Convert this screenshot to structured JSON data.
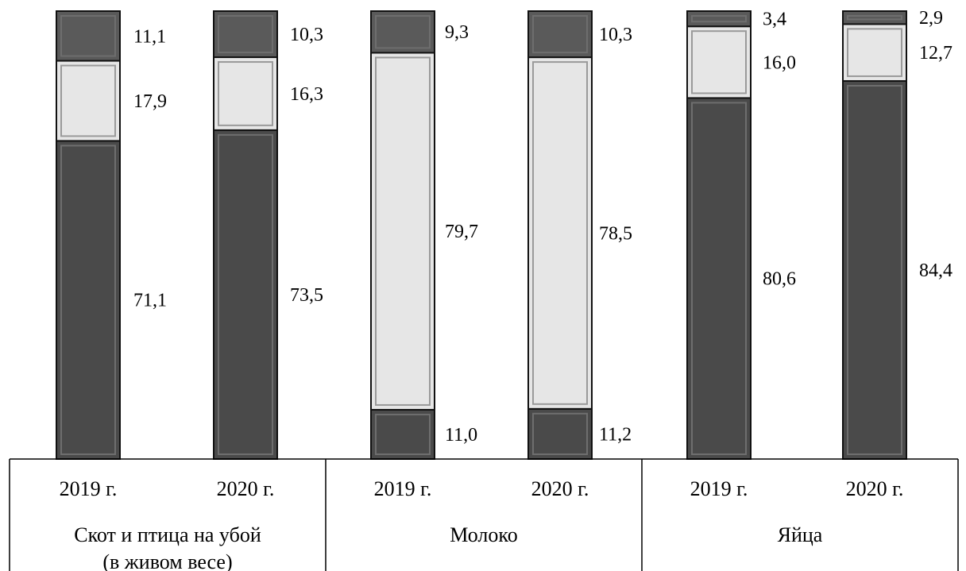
{
  "chart_data": {
    "type": "bar",
    "stacked": true,
    "percent_stacked": true,
    "groups": [
      {
        "name_lines": [
          "Скот и птица на убой",
          "(в живом весе)"
        ],
        "years": [
          "2019 г.",
          "2020 г."
        ],
        "bars": [
          {
            "values": [
              71.1,
              17.9,
              11.1
            ],
            "labels": [
              "71,1",
              "17,9",
              "11,1"
            ]
          },
          {
            "values": [
              73.5,
              16.3,
              10.3
            ],
            "labels": [
              "73,5",
              "16,3",
              "10,3"
            ]
          }
        ]
      },
      {
        "name_lines": [
          "Молоко"
        ],
        "years": [
          "2019 г.",
          "2020 г."
        ],
        "bars": [
          {
            "values": [
              11.0,
              79.7,
              9.3
            ],
            "labels": [
              "11,0",
              "79,7",
              "9,3"
            ]
          },
          {
            "values": [
              11.2,
              78.5,
              10.3
            ],
            "labels": [
              "11,2",
              "78,5",
              "10,3"
            ]
          }
        ]
      },
      {
        "name_lines": [
          "Яйца"
        ],
        "years": [
          "2019 г.",
          "2020 г."
        ],
        "bars": [
          {
            "values": [
              80.6,
              16.0,
              3.4
            ],
            "labels": [
              "80,6",
              "16,0",
              "3,4"
            ]
          },
          {
            "values": [
              84.4,
              12.7,
              2.9
            ],
            "labels": [
              "84,4",
              "12,7",
              "2,9"
            ]
          }
        ]
      }
    ],
    "segment_colors": [
      "#4a4a4a",
      "#e6e6e6",
      "#5a5a5a"
    ],
    "ylim": [
      0,
      100
    ]
  }
}
